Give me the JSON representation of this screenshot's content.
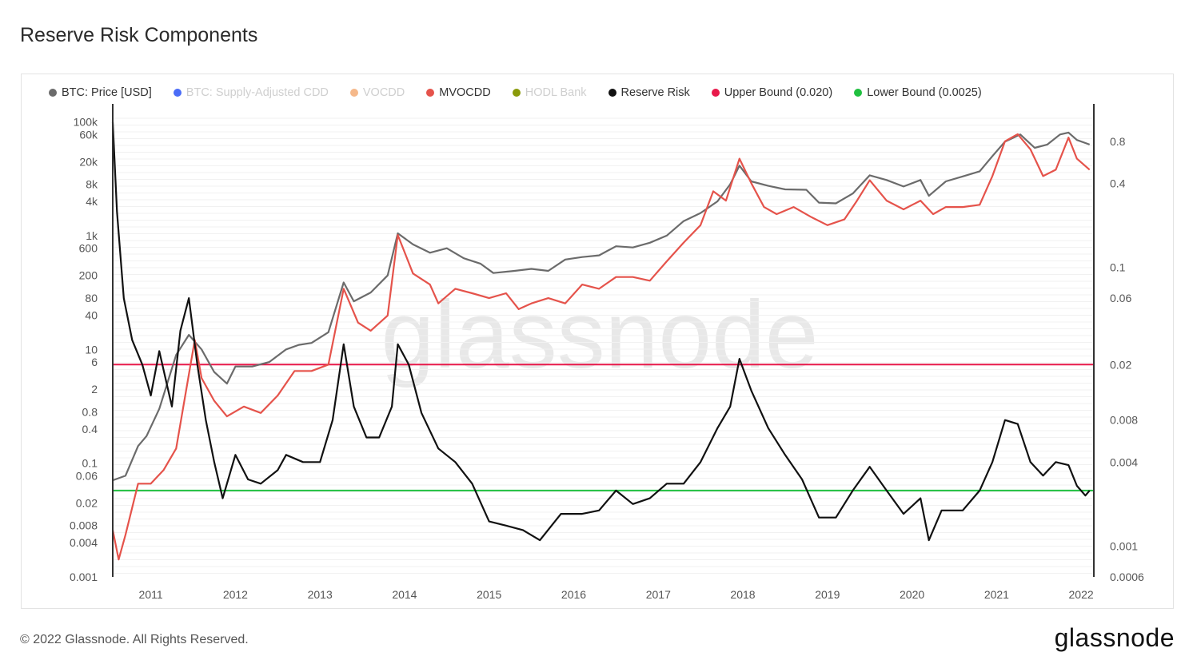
{
  "page": {
    "title": "Reserve Risk Components"
  },
  "footer": {
    "copyright": "© 2022 Glassnode. All Rights Reserved.",
    "brand": "glassnode"
  },
  "chart_data": {
    "type": "line",
    "watermark": "glassnode",
    "legend": [
      {
        "name": "BTC: Price [USD]",
        "color": "#6b6b6b",
        "active": true
      },
      {
        "name": "BTC: Supply-Adjusted CDD",
        "color": "#4a6cf7",
        "active": false
      },
      {
        "name": "VOCDD",
        "color": "#f5b88a",
        "active": false
      },
      {
        "name": "MVOCDD",
        "color": "#e5534b",
        "active": true
      },
      {
        "name": "HODL Bank",
        "color": "#8a9a0a",
        "active": false
      },
      {
        "name": "Reserve Risk",
        "color": "#111111",
        "active": true
      },
      {
        "name": "Upper Bound (0.020)",
        "color": "#e8194a",
        "active": true
      },
      {
        "name": "Lower Bound (0.0025)",
        "color": "#20c040",
        "active": true
      }
    ],
    "x_ticks": [
      "2011",
      "2012",
      "2013",
      "2014",
      "2015",
      "2016",
      "2017",
      "2018",
      "2019",
      "2020",
      "2021",
      "2022"
    ],
    "left_axis": {
      "scale": "log",
      "range": [
        0.001,
        150000
      ],
      "ticks": [
        {
          "label": "100k",
          "value": 100000
        },
        {
          "label": "60k",
          "value": 60000
        },
        {
          "label": "20k",
          "value": 20000
        },
        {
          "label": "8k",
          "value": 8000
        },
        {
          "label": "4k",
          "value": 4000
        },
        {
          "label": "1k",
          "value": 1000
        },
        {
          "label": "600",
          "value": 600
        },
        {
          "label": "200",
          "value": 200
        },
        {
          "label": "80",
          "value": 80
        },
        {
          "label": "40",
          "value": 40
        },
        {
          "label": "10",
          "value": 10
        },
        {
          "label": "6",
          "value": 6
        },
        {
          "label": "2",
          "value": 2
        },
        {
          "label": "0.8",
          "value": 0.8
        },
        {
          "label": "0.4",
          "value": 0.4
        },
        {
          "label": "0.1",
          "value": 0.1
        },
        {
          "label": "0.06",
          "value": 0.06
        },
        {
          "label": "0.02",
          "value": 0.02
        },
        {
          "label": "0.008",
          "value": 0.008
        },
        {
          "label": "0.004",
          "value": 0.004
        },
        {
          "label": "0.001",
          "value": 0.001
        }
      ]
    },
    "right_axis": {
      "scale": "log",
      "range": [
        0.0006,
        1.3
      ],
      "ticks": [
        {
          "label": "0.8",
          "value": 0.8
        },
        {
          "label": "0.4",
          "value": 0.4
        },
        {
          "label": "0.1",
          "value": 0.1
        },
        {
          "label": "0.06",
          "value": 0.06
        },
        {
          "label": "0.02",
          "value": 0.02
        },
        {
          "label": "0.008",
          "value": 0.008
        },
        {
          "label": "0.004",
          "value": 0.004
        },
        {
          "label": "0.001",
          "value": 0.001
        },
        {
          "label": "0.0006",
          "value": 0.0006
        }
      ]
    },
    "bounds": {
      "upper": 0.02,
      "lower": 0.0025
    },
    "series": [
      {
        "name": "BTC: Price [USD]",
        "axis": "left",
        "color": "#6b6b6b",
        "points": [
          [
            2010.55,
            0.05
          ],
          [
            2010.7,
            0.06
          ],
          [
            2010.85,
            0.2
          ],
          [
            2010.95,
            0.3
          ],
          [
            2011.1,
            0.9
          ],
          [
            2011.3,
            8
          ],
          [
            2011.45,
            18
          ],
          [
            2011.6,
            10
          ],
          [
            2011.75,
            4
          ],
          [
            2011.9,
            2.5
          ],
          [
            2012.0,
            5
          ],
          [
            2012.2,
            5
          ],
          [
            2012.4,
            6
          ],
          [
            2012.6,
            10
          ],
          [
            2012.75,
            12
          ],
          [
            2012.9,
            13
          ],
          [
            2013.1,
            20
          ],
          [
            2013.28,
            150
          ],
          [
            2013.4,
            70
          ],
          [
            2013.6,
            100
          ],
          [
            2013.8,
            200
          ],
          [
            2013.92,
            1100
          ],
          [
            2014.1,
            700
          ],
          [
            2014.3,
            500
          ],
          [
            2014.5,
            600
          ],
          [
            2014.7,
            400
          ],
          [
            2014.9,
            320
          ],
          [
            2015.05,
            220
          ],
          [
            2015.3,
            240
          ],
          [
            2015.5,
            260
          ],
          [
            2015.7,
            240
          ],
          [
            2015.9,
            380
          ],
          [
            2016.1,
            420
          ],
          [
            2016.3,
            450
          ],
          [
            2016.5,
            650
          ],
          [
            2016.7,
            620
          ],
          [
            2016.9,
            750
          ],
          [
            2017.1,
            1000
          ],
          [
            2017.3,
            1800
          ],
          [
            2017.5,
            2500
          ],
          [
            2017.7,
            4000
          ],
          [
            2017.85,
            8000
          ],
          [
            2017.96,
            17000
          ],
          [
            2018.1,
            9000
          ],
          [
            2018.3,
            7500
          ],
          [
            2018.5,
            6500
          ],
          [
            2018.75,
            6400
          ],
          [
            2018.9,
            3800
          ],
          [
            2019.1,
            3700
          ],
          [
            2019.3,
            5500
          ],
          [
            2019.5,
            11500
          ],
          [
            2019.7,
            9500
          ],
          [
            2019.9,
            7300
          ],
          [
            2020.1,
            9500
          ],
          [
            2020.2,
            5000
          ],
          [
            2020.4,
            9000
          ],
          [
            2020.6,
            11000
          ],
          [
            2020.8,
            13500
          ],
          [
            2020.95,
            25000
          ],
          [
            2021.1,
            45000
          ],
          [
            2021.28,
            60000
          ],
          [
            2021.45,
            35000
          ],
          [
            2021.6,
            40000
          ],
          [
            2021.75,
            60000
          ],
          [
            2021.85,
            65000
          ],
          [
            2021.95,
            48000
          ],
          [
            2022.1,
            40000
          ]
        ]
      },
      {
        "name": "MVOCDD",
        "axis": "right",
        "color": "#e5534b",
        "points": [
          [
            2010.55,
            0.0013
          ],
          [
            2010.62,
            0.0008
          ],
          [
            2010.7,
            0.0012
          ],
          [
            2010.85,
            0.0028
          ],
          [
            2011.0,
            0.0028
          ],
          [
            2011.15,
            0.0035
          ],
          [
            2011.3,
            0.005
          ],
          [
            2011.45,
            0.017
          ],
          [
            2011.52,
            0.03
          ],
          [
            2011.6,
            0.016
          ],
          [
            2011.75,
            0.011
          ],
          [
            2011.9,
            0.0085
          ],
          [
            2012.1,
            0.01
          ],
          [
            2012.3,
            0.009
          ],
          [
            2012.5,
            0.012
          ],
          [
            2012.7,
            0.018
          ],
          [
            2012.9,
            0.018
          ],
          [
            2013.1,
            0.02
          ],
          [
            2013.28,
            0.07
          ],
          [
            2013.45,
            0.04
          ],
          [
            2013.6,
            0.035
          ],
          [
            2013.8,
            0.045
          ],
          [
            2013.92,
            0.17
          ],
          [
            2014.1,
            0.09
          ],
          [
            2014.3,
            0.075
          ],
          [
            2014.4,
            0.055
          ],
          [
            2014.6,
            0.07
          ],
          [
            2014.8,
            0.065
          ],
          [
            2015.0,
            0.06
          ],
          [
            2015.2,
            0.065
          ],
          [
            2015.35,
            0.05
          ],
          [
            2015.5,
            0.055
          ],
          [
            2015.7,
            0.06
          ],
          [
            2015.9,
            0.055
          ],
          [
            2016.1,
            0.075
          ],
          [
            2016.3,
            0.07
          ],
          [
            2016.5,
            0.085
          ],
          [
            2016.7,
            0.085
          ],
          [
            2016.9,
            0.08
          ],
          [
            2017.1,
            0.11
          ],
          [
            2017.3,
            0.15
          ],
          [
            2017.5,
            0.2
          ],
          [
            2017.65,
            0.35
          ],
          [
            2017.8,
            0.3
          ],
          [
            2017.96,
            0.6
          ],
          [
            2018.1,
            0.4
          ],
          [
            2018.25,
            0.27
          ],
          [
            2018.4,
            0.24
          ],
          [
            2018.6,
            0.27
          ],
          [
            2018.8,
            0.23
          ],
          [
            2019.0,
            0.2
          ],
          [
            2019.2,
            0.22
          ],
          [
            2019.35,
            0.3
          ],
          [
            2019.5,
            0.42
          ],
          [
            2019.7,
            0.3
          ],
          [
            2019.9,
            0.26
          ],
          [
            2020.1,
            0.3
          ],
          [
            2020.25,
            0.24
          ],
          [
            2020.4,
            0.27
          ],
          [
            2020.6,
            0.27
          ],
          [
            2020.8,
            0.28
          ],
          [
            2020.95,
            0.45
          ],
          [
            2021.1,
            0.8
          ],
          [
            2021.25,
            0.9
          ],
          [
            2021.4,
            0.7
          ],
          [
            2021.55,
            0.45
          ],
          [
            2021.7,
            0.5
          ],
          [
            2021.85,
            0.85
          ],
          [
            2021.95,
            0.6
          ],
          [
            2022.1,
            0.5
          ]
        ]
      },
      {
        "name": "Reserve Risk",
        "axis": "right",
        "color": "#111111",
        "points": [
          [
            2010.55,
            1.1
          ],
          [
            2010.6,
            0.25
          ],
          [
            2010.68,
            0.06
          ],
          [
            2010.78,
            0.03
          ],
          [
            2010.9,
            0.02
          ],
          [
            2011.0,
            0.012
          ],
          [
            2011.1,
            0.025
          ],
          [
            2011.25,
            0.01
          ],
          [
            2011.35,
            0.035
          ],
          [
            2011.45,
            0.06
          ],
          [
            2011.55,
            0.02
          ],
          [
            2011.65,
            0.008
          ],
          [
            2011.75,
            0.004
          ],
          [
            2011.85,
            0.0022
          ],
          [
            2012.0,
            0.0045
          ],
          [
            2012.15,
            0.003
          ],
          [
            2012.3,
            0.0028
          ],
          [
            2012.5,
            0.0035
          ],
          [
            2012.6,
            0.0045
          ],
          [
            2012.8,
            0.004
          ],
          [
            2013.0,
            0.004
          ],
          [
            2013.15,
            0.008
          ],
          [
            2013.28,
            0.028
          ],
          [
            2013.4,
            0.01
          ],
          [
            2013.55,
            0.006
          ],
          [
            2013.7,
            0.006
          ],
          [
            2013.85,
            0.01
          ],
          [
            2013.92,
            0.028
          ],
          [
            2014.05,
            0.02
          ],
          [
            2014.2,
            0.009
          ],
          [
            2014.4,
            0.005
          ],
          [
            2014.6,
            0.004
          ],
          [
            2014.8,
            0.0028
          ],
          [
            2015.0,
            0.0015
          ],
          [
            2015.2,
            0.0014
          ],
          [
            2015.4,
            0.0013
          ],
          [
            2015.6,
            0.0011
          ],
          [
            2015.85,
            0.0017
          ],
          [
            2016.1,
            0.0017
          ],
          [
            2016.3,
            0.0018
          ],
          [
            2016.5,
            0.0025
          ],
          [
            2016.7,
            0.002
          ],
          [
            2016.9,
            0.0022
          ],
          [
            2017.1,
            0.0028
          ],
          [
            2017.3,
            0.0028
          ],
          [
            2017.5,
            0.004
          ],
          [
            2017.7,
            0.007
          ],
          [
            2017.85,
            0.01
          ],
          [
            2017.96,
            0.022
          ],
          [
            2018.1,
            0.013
          ],
          [
            2018.3,
            0.007
          ],
          [
            2018.5,
            0.0045
          ],
          [
            2018.7,
            0.003
          ],
          [
            2018.9,
            0.0016
          ],
          [
            2019.1,
            0.0016
          ],
          [
            2019.3,
            0.0025
          ],
          [
            2019.5,
            0.0037
          ],
          [
            2019.7,
            0.0025
          ],
          [
            2019.9,
            0.0017
          ],
          [
            2020.1,
            0.0022
          ],
          [
            2020.2,
            0.0011
          ],
          [
            2020.35,
            0.0018
          ],
          [
            2020.6,
            0.0018
          ],
          [
            2020.8,
            0.0025
          ],
          [
            2020.95,
            0.004
          ],
          [
            2021.1,
            0.008
          ],
          [
            2021.25,
            0.0075
          ],
          [
            2021.4,
            0.004
          ],
          [
            2021.55,
            0.0032
          ],
          [
            2021.7,
            0.004
          ],
          [
            2021.85,
            0.0038
          ],
          [
            2021.95,
            0.0027
          ],
          [
            2022.05,
            0.0023
          ],
          [
            2022.1,
            0.0025
          ]
        ]
      }
    ]
  }
}
